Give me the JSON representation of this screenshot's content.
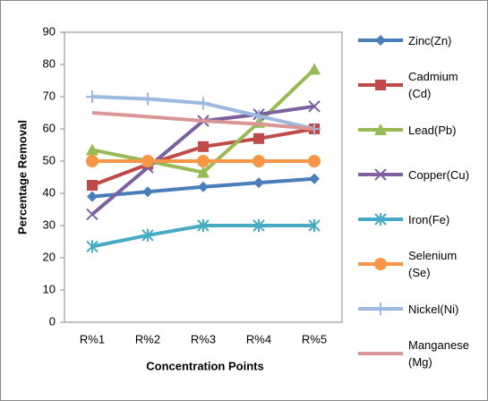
{
  "chart_data": {
    "type": "line",
    "y_label": "Percentage Removal",
    "x_label": "Concentration Points",
    "categories": [
      "R%1",
      "R%2",
      "R%3",
      "R%4",
      "R%5"
    ],
    "ylim": [
      0,
      90
    ],
    "yticks": [
      0,
      10,
      20,
      30,
      40,
      50,
      60,
      70,
      80,
      90
    ],
    "grid": false,
    "legend": "right",
    "series": [
      {
        "name": "Zinc(Zn)",
        "color": "#4a7ebb",
        "marker": "diamond",
        "values": [
          39,
          40.5,
          42,
          43.3,
          44.5
        ]
      },
      {
        "name": "Cadmium (Cd)",
        "color": "#be4b48",
        "marker": "square",
        "values": [
          42.5,
          49,
          54.5,
          57,
          60
        ]
      },
      {
        "name": "Lead(Pb)",
        "color": "#98b954",
        "marker": "triangle",
        "values": [
          53.5,
          50,
          46.5,
          62,
          78.5
        ]
      },
      {
        "name": "Copper(Cu)",
        "color": "#7d60a0",
        "marker": "x",
        "values": [
          33.5,
          48,
          62.5,
          64.5,
          67
        ]
      },
      {
        "name": "Iron(Fe)",
        "color": "#46aac5",
        "marker": "star",
        "values": [
          23.5,
          27,
          30,
          30,
          30
        ]
      },
      {
        "name": "Selenium (Se)",
        "color": "#f79646",
        "marker": "circle",
        "values": [
          50,
          50,
          50,
          50,
          50
        ]
      },
      {
        "name": "Nickel(Ni)",
        "color": "#9db9e0",
        "marker": "plus",
        "values": [
          70,
          69.3,
          68,
          64,
          60
        ]
      },
      {
        "name": "Manganese (Mg)",
        "color": "#d99694",
        "marker": "none",
        "values": [
          65,
          63.8,
          62.5,
          61.5,
          60
        ]
      }
    ]
  }
}
